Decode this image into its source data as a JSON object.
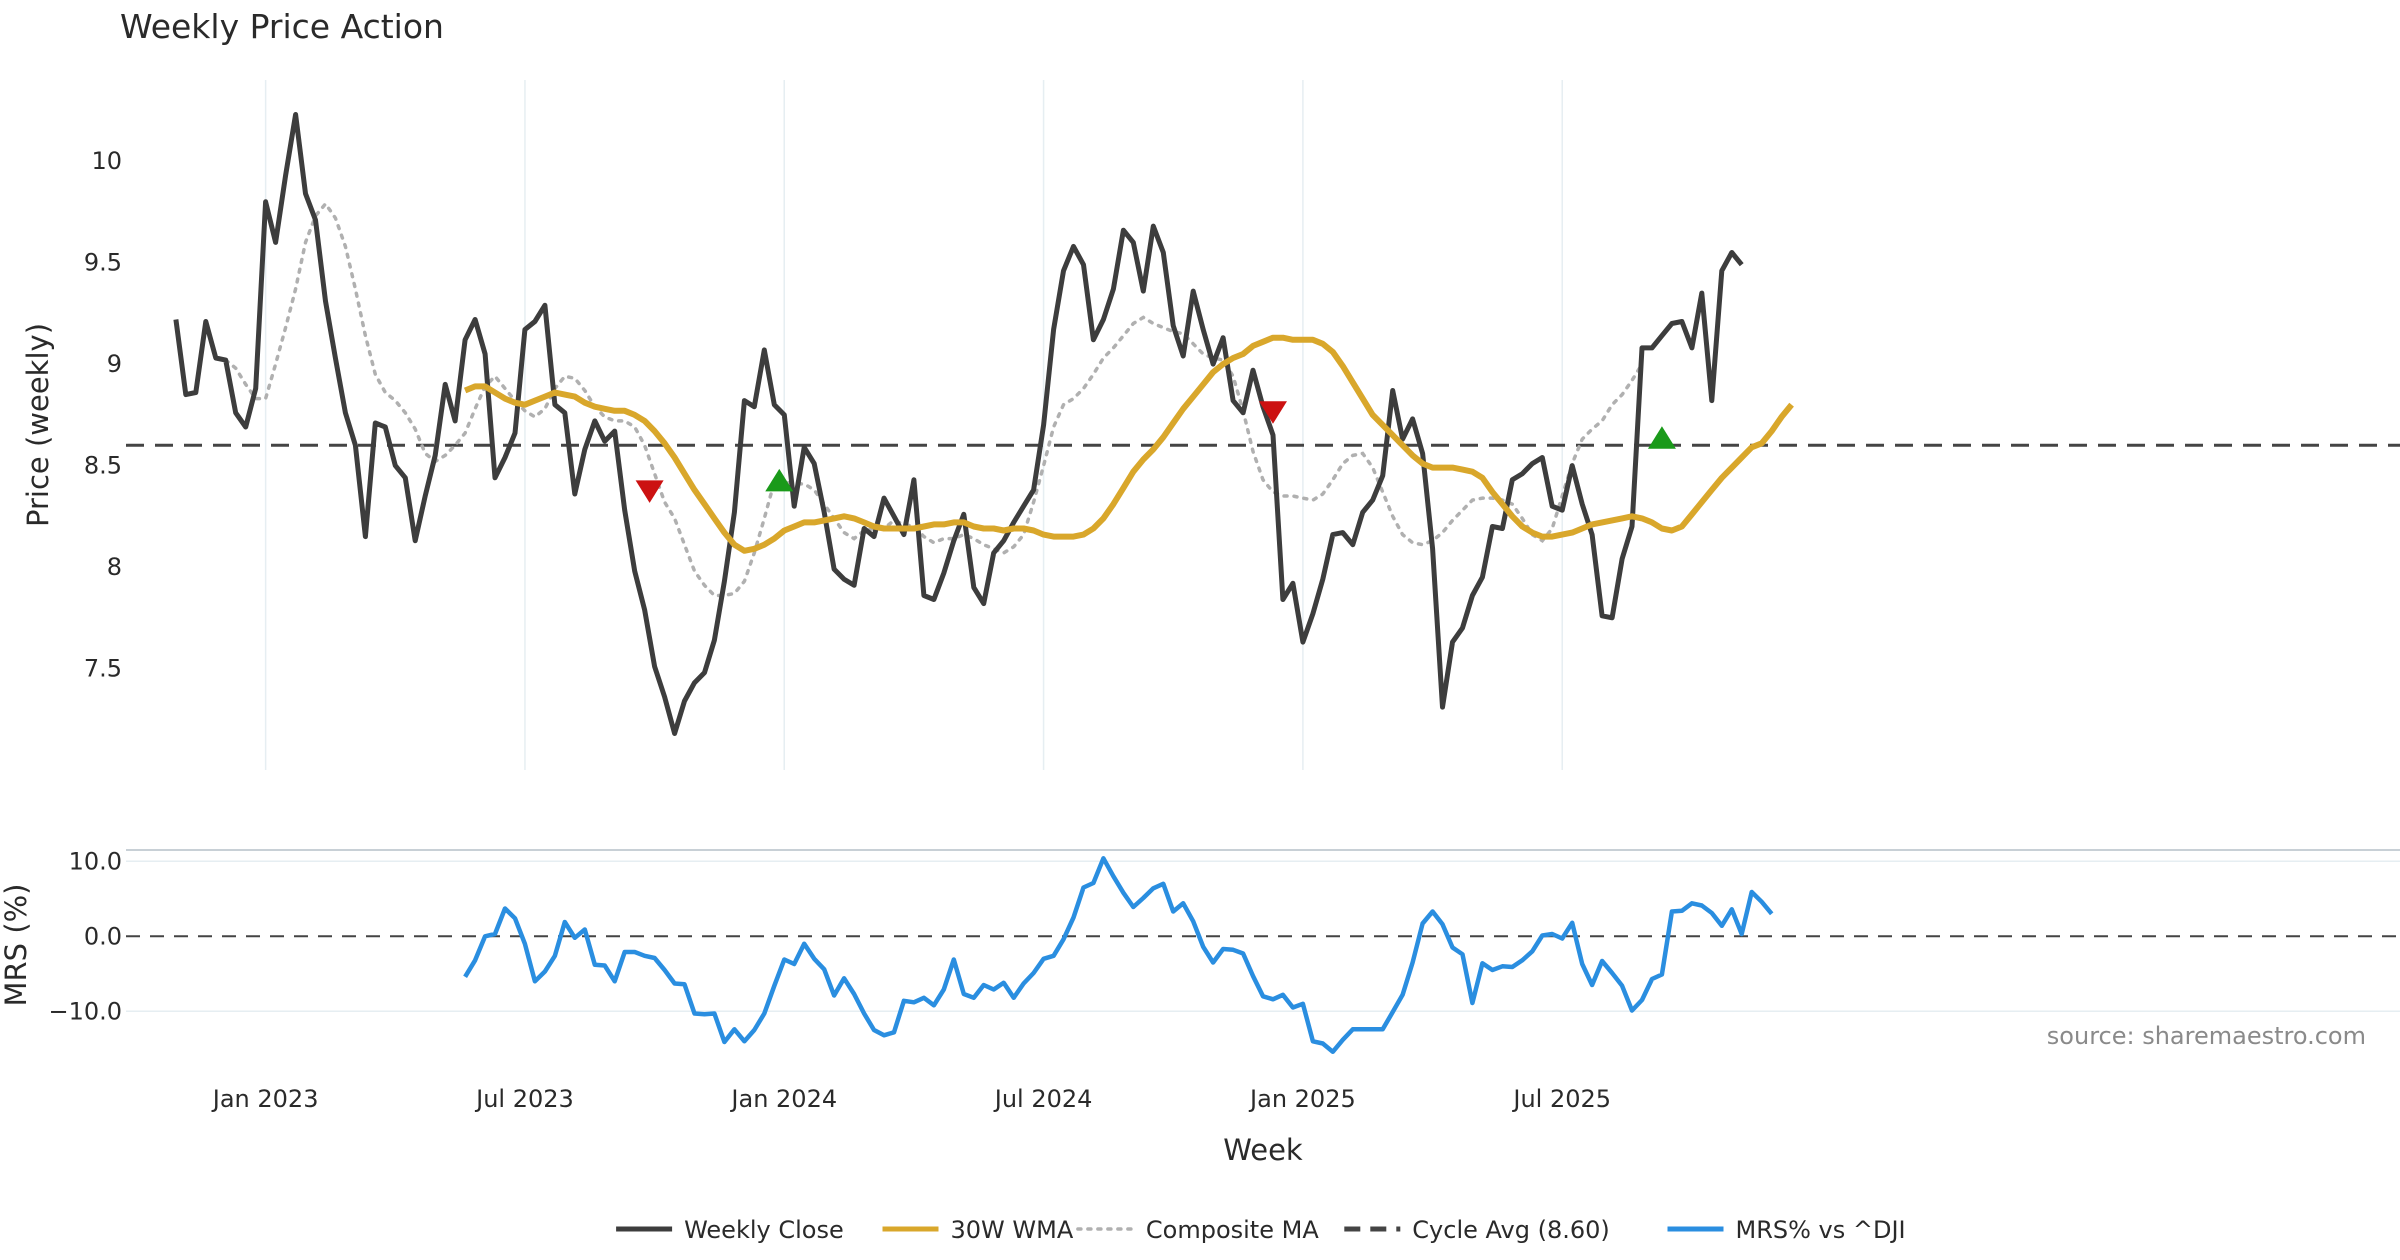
{
  "chart_data": {
    "type": "line",
    "title": "Weekly Price Action",
    "source": "source: sharemaestro.com",
    "colors": {
      "close": "#3d3d3d",
      "wma": "#d9a72b",
      "composite": "#b0b0b0",
      "cycle": "#444444",
      "mrs": "#2a8ee0",
      "buy": "#1a9a1a",
      "sell": "#cc1111",
      "grid": "#e6eef2"
    },
    "price_panel": {
      "ylabel": "Price (weekly)",
      "ylim": [
        7.0,
        10.4
      ],
      "yticks": [
        7.5,
        8,
        8.5,
        9,
        9.5,
        10
      ],
      "ytick_labels": [
        "7.5",
        "8",
        "8.5",
        "9",
        "9.5",
        "10"
      ],
      "cycle_avg": 8.6
    },
    "mrs_panel": {
      "ylabel": "MRS (%)",
      "ylim": [
        -16.5,
        11.5
      ],
      "yticks": [
        10,
        0,
        -10
      ],
      "ytick_labels": [
        "10.0",
        "0.0",
        "−10.0"
      ]
    },
    "x_axis": {
      "label": "Week",
      "xlim": [
        -14,
        214
      ],
      "ticks": [
        {
          "pos": 0,
          "label": "Jan 2023"
        },
        {
          "pos": 26,
          "label": "Jul 2023"
        },
        {
          "pos": 52,
          "label": "Jan 2024"
        },
        {
          "pos": 78,
          "label": "Jul 2024"
        },
        {
          "pos": 104,
          "label": "Jan 2025"
        },
        {
          "pos": 130,
          "label": "Jul 2025"
        }
      ]
    },
    "series": [
      {
        "name": "Weekly Close",
        "start": -9,
        "values": [
          9.22,
          8.85,
          8.86,
          9.21,
          9.03,
          9.02,
          8.76,
          8.69,
          8.88,
          9.8,
          9.6,
          9.93,
          10.23,
          9.84,
          9.71,
          9.31,
          9.03,
          8.76,
          8.6,
          8.15,
          8.71,
          8.69,
          8.5,
          8.44,
          8.13,
          8.35,
          8.55,
          8.9,
          8.72,
          9.12,
          9.22,
          9.05,
          8.44,
          8.54,
          8.66,
          9.17,
          9.21,
          9.29,
          8.8,
          8.76,
          8.36,
          8.58,
          8.72,
          8.62,
          8.67,
          8.28,
          7.98,
          7.79,
          7.51,
          7.36,
          7.18,
          7.34,
          7.43,
          7.48,
          7.64,
          7.93,
          8.27,
          8.82,
          8.79,
          9.07,
          8.8,
          8.75,
          8.3,
          8.59,
          8.51,
          8.27,
          7.99,
          7.94,
          7.91,
          8.19,
          8.15,
          8.34,
          8.25,
          8.16,
          8.43,
          7.86,
          7.84,
          7.97,
          8.13,
          8.26,
          7.9,
          7.82,
          8.07,
          8.13,
          8.22,
          8.3,
          8.38,
          8.7,
          9.17,
          9.46,
          9.58,
          9.49,
          9.12,
          9.22,
          9.37,
          9.66,
          9.6,
          9.36,
          9.68,
          9.55,
          9.19,
          9.04,
          9.36,
          9.17,
          9.0,
          9.13,
          8.82,
          8.76,
          8.97,
          8.79,
          8.65,
          7.84,
          7.92,
          7.63,
          7.77,
          7.94,
          8.16,
          8.17,
          8.11,
          8.27,
          8.33,
          8.45,
          8.87,
          8.63,
          8.73,
          8.56,
          8.09,
          7.31,
          7.63,
          7.7,
          7.86,
          7.95,
          8.2,
          8.19,
          8.43,
          8.46,
          8.51,
          8.54,
          8.3,
          8.28,
          8.5,
          8.31,
          8.16,
          7.76,
          7.75,
          8.04,
          8.2,
          9.08,
          9.08,
          9.14,
          9.2,
          9.21,
          9.08,
          9.35,
          8.82,
          9.46,
          9.55,
          9.49
        ]
      },
      {
        "name": "30W WMA",
        "start": 20,
        "values": [
          8.87,
          8.89,
          8.89,
          8.86,
          8.83,
          8.81,
          8.8,
          8.82,
          8.84,
          8.86,
          8.85,
          8.84,
          8.81,
          8.79,
          8.78,
          8.77,
          8.77,
          8.75,
          8.72,
          8.67,
          8.61,
          8.54,
          8.46,
          8.38,
          8.31,
          8.24,
          8.17,
          8.11,
          8.08,
          8.09,
          8.11,
          8.14,
          8.18,
          8.2,
          8.22,
          8.22,
          8.23,
          8.24,
          8.25,
          8.24,
          8.22,
          8.2,
          8.19,
          8.19,
          8.19,
          8.19,
          8.2,
          8.21,
          8.21,
          8.22,
          8.22,
          8.2,
          8.19,
          8.19,
          8.18,
          8.19,
          8.19,
          8.18,
          8.16,
          8.15,
          8.15,
          8.15,
          8.16,
          8.19,
          8.24,
          8.31,
          8.39,
          8.47,
          8.53,
          8.58,
          8.64,
          8.71,
          8.78,
          8.84,
          8.9,
          8.96,
          9.0,
          9.03,
          9.05,
          9.09,
          9.11,
          9.13,
          9.13,
          9.12,
          9.12,
          9.12,
          9.1,
          9.06,
          8.99,
          8.91,
          8.83,
          8.75,
          8.7,
          8.65,
          8.6,
          8.55,
          8.51,
          8.49,
          8.49,
          8.49,
          8.48,
          8.47,
          8.44,
          8.37,
          8.31,
          8.25,
          8.2,
          8.17,
          8.15,
          8.15,
          8.16,
          8.17,
          8.19,
          8.21,
          8.22,
          8.23,
          8.24,
          8.25,
          8.24,
          8.22,
          8.19,
          8.18,
          8.2,
          8.26,
          8.32,
          8.38,
          8.44,
          8.49,
          8.54,
          8.59,
          8.61,
          8.67,
          8.74,
          8.8
        ]
      },
      {
        "name": "Composite MA",
        "start": -4,
        "values": [
          9.02,
          8.98,
          8.9,
          8.83,
          8.83,
          9.0,
          9.18,
          9.37,
          9.6,
          9.73,
          9.79,
          9.72,
          9.58,
          9.37,
          9.14,
          8.95,
          8.86,
          8.82,
          8.76,
          8.68,
          8.56,
          8.52,
          8.55,
          8.6,
          8.66,
          8.78,
          8.89,
          8.94,
          8.88,
          8.82,
          8.77,
          8.74,
          8.78,
          8.88,
          8.94,
          8.93,
          8.87,
          8.79,
          8.74,
          8.72,
          8.72,
          8.69,
          8.6,
          8.46,
          8.32,
          8.24,
          8.11,
          7.98,
          7.91,
          7.86,
          7.86,
          7.87,
          7.93,
          8.07,
          8.24,
          8.42,
          8.42,
          8.41,
          8.41,
          8.38,
          8.31,
          8.24,
          8.17,
          8.14,
          8.18,
          8.19,
          8.19,
          8.23,
          8.21,
          8.2,
          8.15,
          8.12,
          8.14,
          8.14,
          8.16,
          8.14,
          8.11,
          8.09,
          8.07,
          8.1,
          8.16,
          8.32,
          8.5,
          8.69,
          8.8,
          8.83,
          8.88,
          8.95,
          9.03,
          9.08,
          9.14,
          9.2,
          9.23,
          9.2,
          9.18,
          9.16,
          9.15,
          9.1,
          9.05,
          9.03,
          9.02,
          8.94,
          8.77,
          8.57,
          8.43,
          8.37,
          8.35,
          8.35,
          8.34,
          8.33,
          8.36,
          8.43,
          8.51,
          8.55,
          8.56,
          8.49,
          8.37,
          8.25,
          8.16,
          8.12,
          8.11,
          8.13,
          8.17,
          8.23,
          8.28,
          8.33,
          8.34,
          8.34,
          8.33,
          8.31,
          8.24,
          8.16,
          8.13,
          8.19,
          8.35,
          8.51,
          8.63,
          8.68,
          8.72,
          8.8,
          8.85,
          8.92,
          9.0
        ]
      },
      {
        "name": "MRS% vs ^DJI",
        "start": 20,
        "values": [
          -5.4,
          -3.2,
          0.0,
          0.3,
          3.7,
          2.4,
          -1.0,
          -6.0,
          -4.7,
          -2.6,
          1.9,
          -0.2,
          0.9,
          -3.8,
          -3.9,
          -6.0,
          -2.1,
          -2.1,
          -2.6,
          -2.9,
          -4.5,
          -6.3,
          -6.4,
          -10.3,
          -10.4,
          -10.3,
          -14.1,
          -12.4,
          -14.0,
          -12.5,
          -10.3,
          -6.6,
          -3.1,
          -3.7,
          -1.0,
          -3.0,
          -4.4,
          -7.9,
          -5.6,
          -7.7,
          -10.3,
          -12.5,
          -13.2,
          -12.8,
          -8.6,
          -8.8,
          -8.2,
          -9.2,
          -7.1,
          -3.1,
          -7.7,
          -8.2,
          -6.5,
          -7.1,
          -6.2,
          -8.2,
          -6.3,
          -4.9,
          -3.0,
          -2.6,
          -0.4,
          2.5,
          6.5,
          7.1,
          10.4,
          8.0,
          5.8,
          3.9,
          5.1,
          6.4,
          7.0,
          3.3,
          4.4,
          2.0,
          -1.4,
          -3.5,
          -1.7,
          -1.8,
          -2.3,
          -5.3,
          -8.0,
          -8.4,
          -7.8,
          -9.5,
          -9.0,
          -14.0,
          -14.3,
          -15.4,
          -13.8,
          -12.4,
          -12.4,
          -12.4,
          -12.4,
          -10.1,
          -7.8,
          -3.5,
          1.7,
          3.3,
          1.6,
          -1.5,
          -2.4,
          -8.9,
          -3.6,
          -4.5,
          -4.0,
          -4.1,
          -3.2,
          -2.0,
          0.1,
          0.3,
          -0.3,
          1.8,
          -3.7,
          -6.5,
          -3.3,
          -4.9,
          -6.6,
          -9.9,
          -8.5,
          -5.7,
          -5.1,
          3.3,
          3.4,
          4.4,
          4.1,
          3.1,
          1.4,
          3.6,
          0.3,
          5.9,
          4.6,
          3.0
        ]
      }
    ],
    "signals": [
      {
        "type": "sell",
        "x": 38.5,
        "y": 8.39
      },
      {
        "type": "buy",
        "x": 51.5,
        "y": 8.41
      },
      {
        "type": "sell",
        "x": 101.0,
        "y": 8.78
      },
      {
        "type": "buy",
        "x": 140.0,
        "y": 8.62
      }
    ],
    "legend": [
      {
        "key": "close",
        "label": "Weekly Close",
        "style": "solid"
      },
      {
        "key": "wma",
        "label": "30W WMA",
        "style": "solid"
      },
      {
        "key": "composite",
        "label": "Composite MA",
        "style": "dotted"
      },
      {
        "key": "cycle",
        "label": "Cycle Avg (8.60)",
        "style": "dashed"
      },
      {
        "key": "mrs",
        "label": "MRS% vs ^DJI",
        "style": "solid"
      }
    ]
  }
}
